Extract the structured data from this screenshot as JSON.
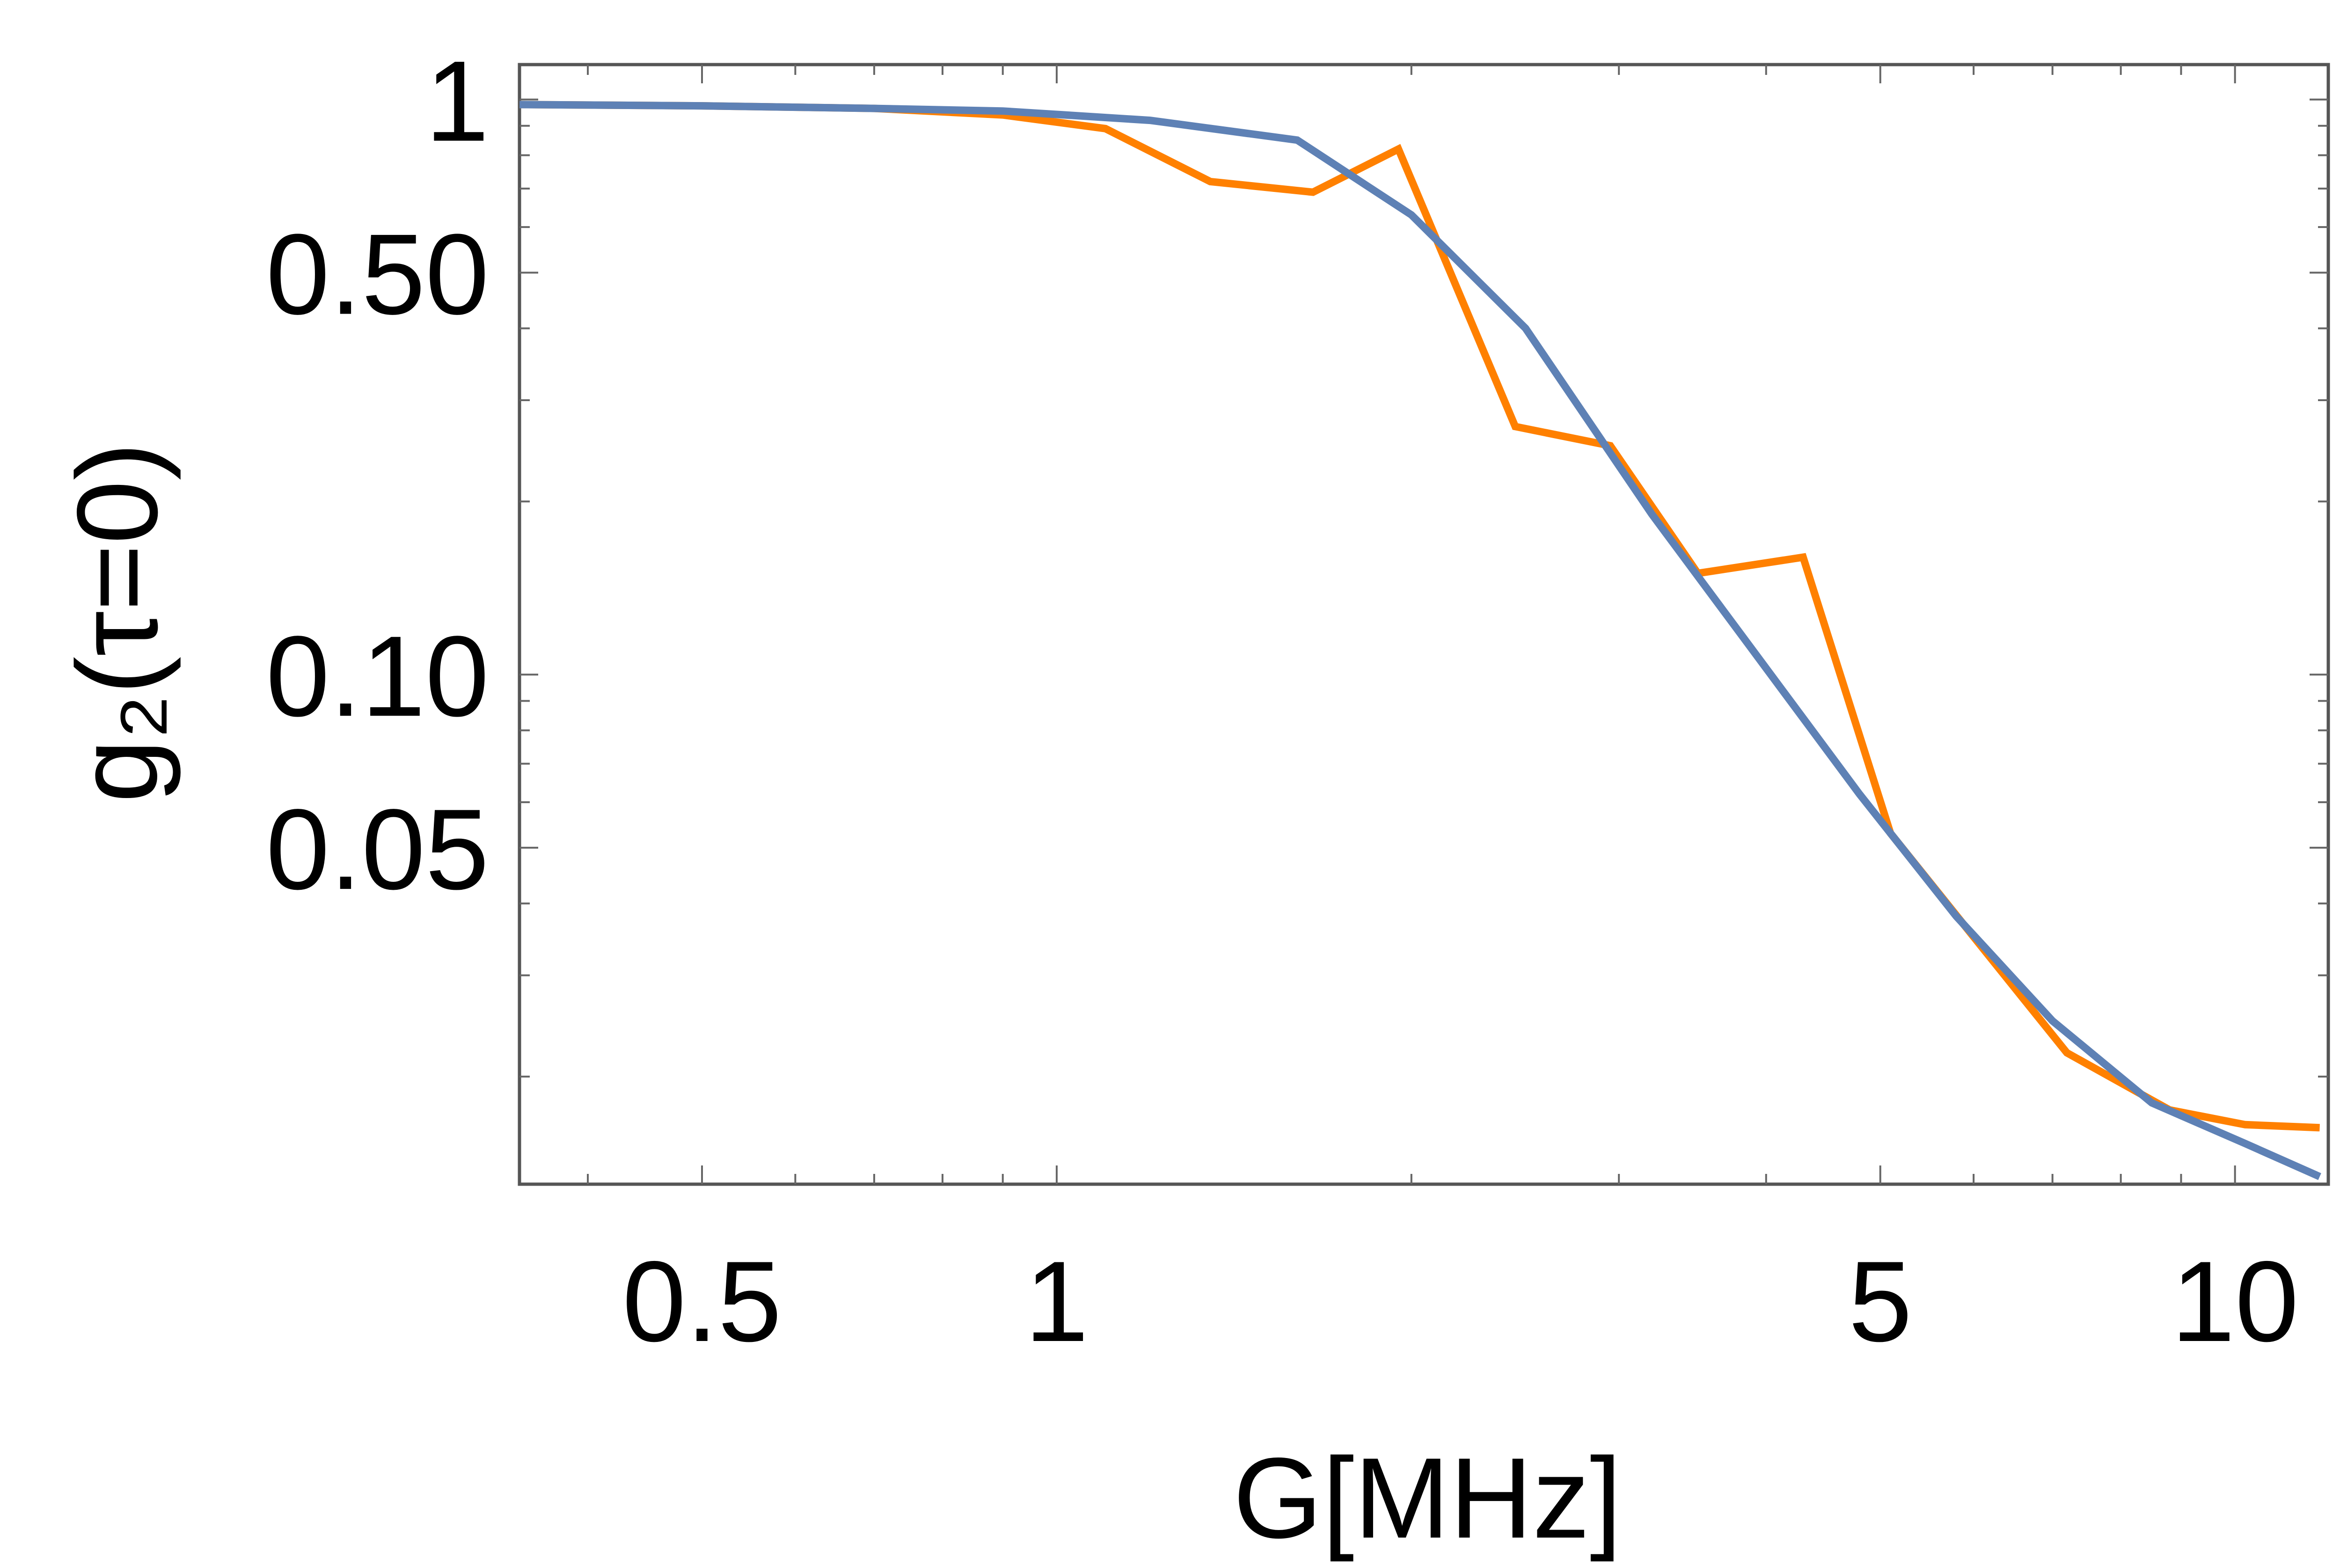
{
  "chart_data": {
    "type": "line",
    "title": "",
    "xlabel": "G[MHz]",
    "ylabel": "g₂(τ=0)",
    "x_scale": "log",
    "y_scale": "log",
    "xlim": [
      0.35,
      12.0
    ],
    "ylim": [
      0.013,
      1.15
    ],
    "x_ticks": [
      {
        "value": 0.5,
        "label": "0.5"
      },
      {
        "value": 1,
        "label": "1"
      },
      {
        "value": 5,
        "label": "5"
      },
      {
        "value": 10,
        "label": "10"
      }
    ],
    "y_ticks": [
      {
        "value": 1,
        "label": "1"
      },
      {
        "value": 0.5,
        "label": "0.50"
      },
      {
        "value": 0.1,
        "label": "0.10"
      },
      {
        "value": 0.05,
        "label": "0.05"
      }
    ],
    "grid": false,
    "series": [
      {
        "color": "#ff8000",
        "x": [
          0.35,
          0.5,
          0.7,
          0.9,
          1.1,
          1.35,
          1.65,
          1.95,
          2.45,
          2.95,
          3.5,
          4.3,
          5.1,
          6.0,
          7.2,
          8.8,
          10.2,
          11.8
        ],
        "y": [
          0.98,
          0.975,
          0.965,
          0.94,
          0.89,
          0.72,
          0.69,
          0.82,
          0.27,
          0.25,
          0.15,
          0.16,
          0.053,
          0.035,
          0.022,
          0.0175,
          0.0165,
          0.0163
        ]
      },
      {
        "color": "#5e81b5",
        "x": [
          0.35,
          0.5,
          0.7,
          0.9,
          1.2,
          1.6,
          2.0,
          2.5,
          3.2,
          3.9,
          4.8,
          5.8,
          7.0,
          8.5,
          10.2,
          11.8
        ],
        "y": [
          0.98,
          0.975,
          0.965,
          0.955,
          0.92,
          0.85,
          0.63,
          0.4,
          0.19,
          0.11,
          0.062,
          0.038,
          0.025,
          0.018,
          0.0153,
          0.0134
        ]
      }
    ]
  }
}
